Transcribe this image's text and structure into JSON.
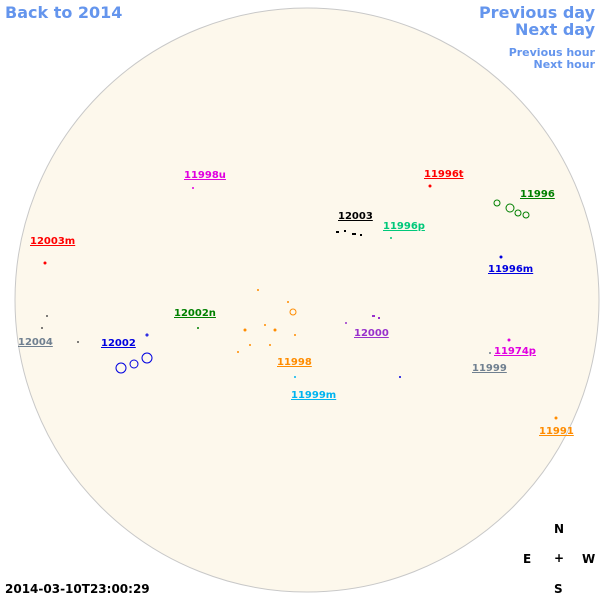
{
  "nav": {
    "back": "Back to 2014",
    "previous_day": "Previous day",
    "next_day": "Next day",
    "previous_hour": "Previous hour",
    "next_hour": "Next hour"
  },
  "regions": [
    {
      "label": "11998u",
      "color": "#e000e0"
    },
    {
      "label": "11996t",
      "color": "#ff0000"
    },
    {
      "label": "11996",
      "color": "#008000"
    },
    {
      "label": "12003",
      "color": "#000000"
    },
    {
      "label": "11996p",
      "color": "#00c87a"
    },
    {
      "label": "12003m",
      "color": "#ff0000"
    },
    {
      "label": "11996m",
      "color": "#0000e0"
    },
    {
      "label": "12002n",
      "color": "#008000"
    },
    {
      "label": "12000",
      "color": "#9932cc"
    },
    {
      "label": "12004",
      "color": "#708090"
    },
    {
      "label": "12002",
      "color": "#0000e0"
    },
    {
      "label": "11974p",
      "color": "#e000e0"
    },
    {
      "label": "11998",
      "color": "#ff8c00"
    },
    {
      "label": "11999",
      "color": "#708090"
    },
    {
      "label": "11999m",
      "color": "#00b4f0"
    },
    {
      "label": "11991",
      "color": "#ff8c00"
    }
  ],
  "compass": {
    "north": "N",
    "east": "E",
    "center": "+",
    "west": "W",
    "south": "S"
  },
  "timestamp": "2014-03-10T23:00:29"
}
